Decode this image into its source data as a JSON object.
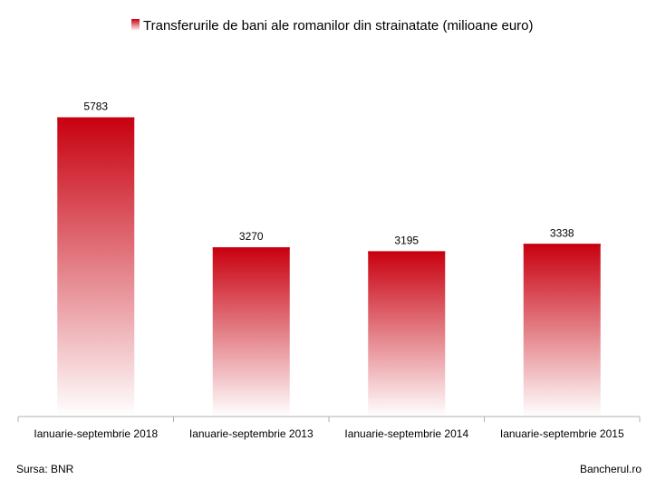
{
  "chart_data": {
    "type": "bar",
    "title": "Transferurile de bani ale romanilor din strainatate (milioane euro)",
    "series": [
      {
        "name": "Transferurile de bani ale romanilor din strainatate (milioane euro)",
        "values": [
          5783,
          3270,
          3195,
          3338
        ]
      }
    ],
    "categories": [
      "Ianuarie-septembrie 2018",
      "Ianuarie-septembrie 2013",
      "Ianuarie-septembrie 2014",
      "Ianuarie-septembrie 2015"
    ],
    "data_labels": [
      "5783",
      "3270",
      "3195",
      "3338"
    ],
    "ylim": [
      0,
      7000
    ],
    "grid": false,
    "legend_position": "top",
    "colors": {
      "bar_top": "#c8000f",
      "bar_bottom": "#ffffff",
      "axis": "#b0b0b0"
    }
  },
  "footer": {
    "source": "Sursa: BNR",
    "brand": "Bancherul.ro"
  }
}
